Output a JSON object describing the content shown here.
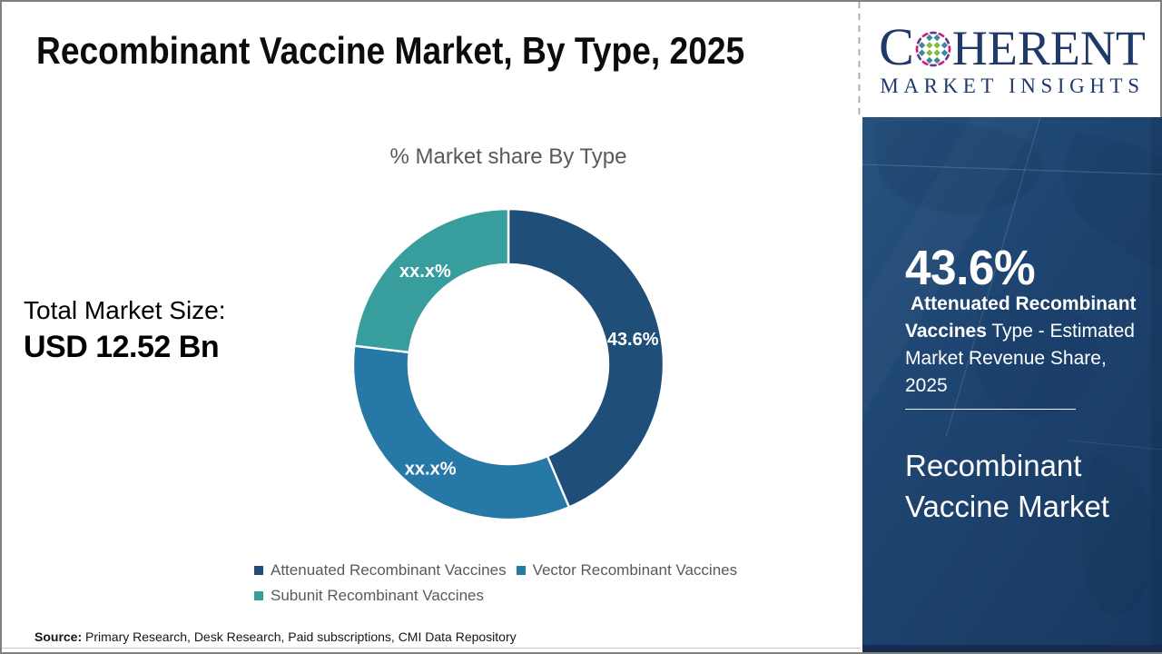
{
  "page": {
    "title": "Recombinant Vaccine Market, By Type, 2025",
    "source_label": "Source:",
    "source_text": " Primary Research, Desk Research, Paid subscriptions, CMI Data Repository"
  },
  "stats": {
    "total_label": "Total Market Size:",
    "total_value": "USD 12.52 Bn"
  },
  "chart_data": {
    "type": "pie",
    "subtype": "donut",
    "title": "% Market share By Type",
    "categories": [
      "Attenuated Recombinant Vaccines",
      "Vector Recombinant Vaccines",
      "Subunit Recombinant Vaccines"
    ],
    "values": [
      43.6,
      33.3,
      23.1
    ],
    "value_labels": [
      "43.6%",
      "xx.x%",
      "xx.x%"
    ],
    "colors": [
      "#1f4e79",
      "#2679a6",
      "#389e9d"
    ],
    "legend_position": "bottom"
  },
  "sidebar": {
    "stat_value": "43.6%",
    "desc_bold": "Attenuated Recombinant Vaccines",
    "desc_rest": " Type - Estimated Market Revenue Share, 2025",
    "market_name": "Recombinant Vaccine Market",
    "panel_color": "#1e4470"
  },
  "logo": {
    "word_start": "C",
    "word_end": "HERENT",
    "subtitle": "MARKET INSIGHTS",
    "text_color": "#1f3a68",
    "globe_colors": {
      "green": "#85bb3f",
      "teal": "#3d86a3",
      "magenta": "#cf2277",
      "purple": "#5e3d8f"
    }
  }
}
